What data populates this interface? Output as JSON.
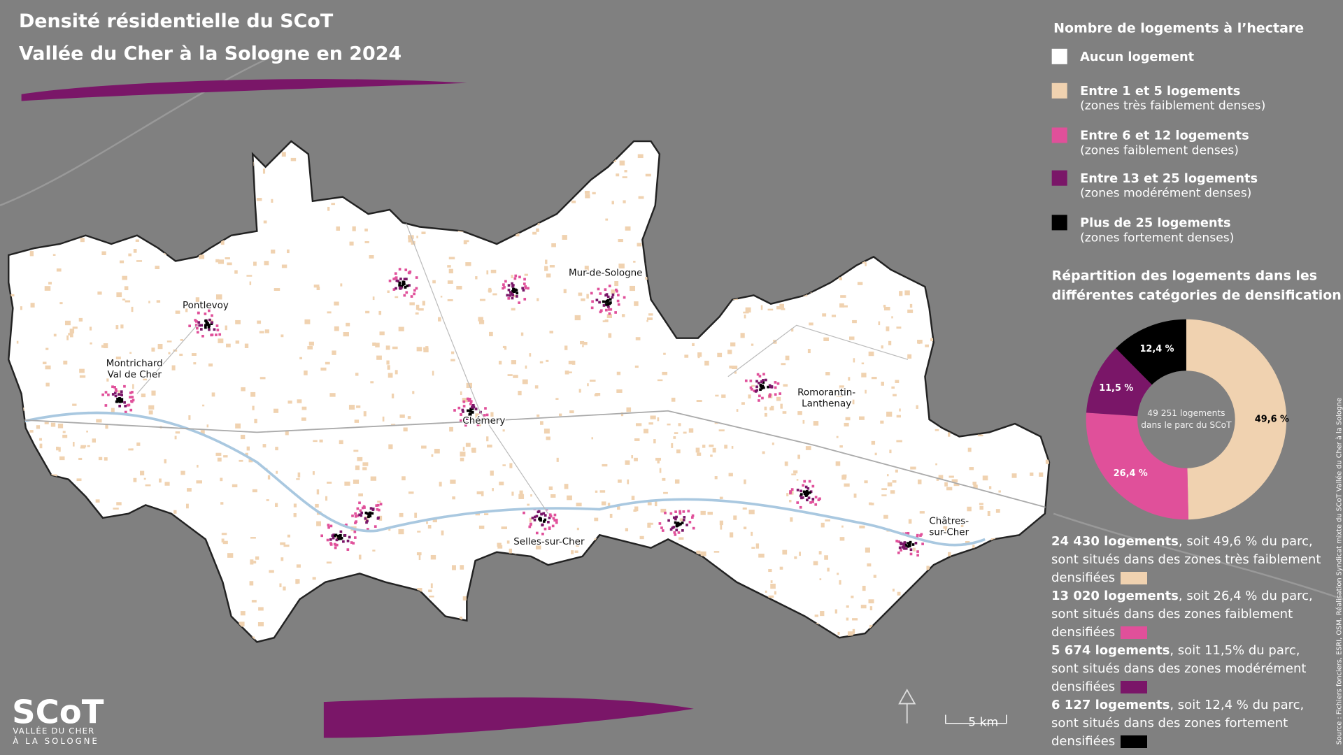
{
  "title": [
    "Densité résidentielle du SCoT",
    "Vallée du Cher à la Sologne en 2024"
  ],
  "legend": {
    "title": "Nombre de logements à l’hectare",
    "items": [
      {
        "label": "Aucun logement",
        "color": "#ffffff"
      },
      {
        "label": "Entre 1 et 5 logements",
        "note": "(zones très faiblement denses)",
        "color": "#f0d2b0"
      },
      {
        "label": "Entre 6 et 12 logements",
        "note": "(zones faiblement denses)",
        "color": "#e0509a"
      },
      {
        "label": "Entre 13 et 25 logements",
        "note": "(zones modérément denses)",
        "color": "#7a1668"
      },
      {
        "label": "Plus de 25 logements",
        "note": "(zones fortement denses)",
        "color": "#000000"
      }
    ]
  },
  "places": [
    "Pontlevoy",
    "Montrichard",
    "Val de Cher",
    "Mur-de-Sologne",
    "Chémery",
    "Romorantin-",
    "Lanthenay",
    "Selles-sur-Cher",
    "Châtres-",
    "sur-Cher"
  ],
  "donut": {
    "title": [
      "Répartition des logements dans les",
      "différentes catégories de densification"
    ],
    "center_text": [
      "49 251 logements",
      "dans le parc du SCoT"
    ],
    "values": [
      49.6,
      26.4,
      11.5,
      12.4
    ],
    "value_labels": [
      "49,6 %",
      "26,4 %",
      "11,5 %",
      "12,4 %"
    ],
    "colors": [
      "#f0d2b0",
      "#e0509a",
      "#7a1668",
      "#000000"
    ]
  },
  "summary": [
    {
      "count": "24 430 logements",
      "text": ", soit 49,6 % du parc, sont situés dans des zones très faiblement densifiées",
      "color": "#f0d2b0"
    },
    {
      "count": "13 020 logements",
      "text": ", soit 26,4 % du parc, sont situés dans des zones faiblement densifiées",
      "color": "#e0509a"
    },
    {
      "count": "5 674 logements",
      "text": ", soit 11,5% du parc, sont situés dans des zones modérément densifiées",
      "color": "#7a1668"
    },
    {
      "count": "6 127 logements",
      "text": ", soit 12,4 % du parc, sont situés dans des zones fortement densifiées",
      "color": "#000000"
    }
  ],
  "scale": "5 km",
  "source": "Source : Fichiers fonciers, ESRI, OSM. Réalisation Syndicat mixte du SCoT Vallée du Cher à la Sologne",
  "logo": {
    "name": "SCoT",
    "lines": [
      "VALLÉE DU CHER",
      "À LA SOLOGNE"
    ]
  }
}
